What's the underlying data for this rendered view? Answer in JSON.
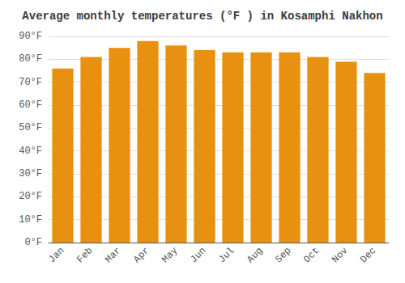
{
  "chart_data": {
    "type": "bar",
    "title": "Average monthly temperatures (°F ) in Kosamphi Nakhon",
    "categories": [
      "Jan",
      "Feb",
      "Mar",
      "Apr",
      "May",
      "Jun",
      "Jul",
      "Aug",
      "Sep",
      "Oct",
      "Nov",
      "Dec"
    ],
    "values": [
      76,
      81,
      85,
      88,
      86,
      84,
      83,
      83,
      83,
      81,
      79,
      74
    ],
    "color": "#E89010",
    "ylim": [
      0,
      90
    ],
    "yticks": [
      {
        "value": 0,
        "label": "0°F"
      },
      {
        "value": 10,
        "label": "10°F"
      },
      {
        "value": 20,
        "label": "20°F"
      },
      {
        "value": 30,
        "label": "30°F"
      },
      {
        "value": 40,
        "label": "40°F"
      },
      {
        "value": 50,
        "label": "50°F"
      },
      {
        "value": 60,
        "label": "60°F"
      },
      {
        "value": 70,
        "label": "70°F"
      },
      {
        "value": 80,
        "label": "80°F"
      },
      {
        "value": 90,
        "label": "90°F"
      }
    ],
    "grid": true
  }
}
